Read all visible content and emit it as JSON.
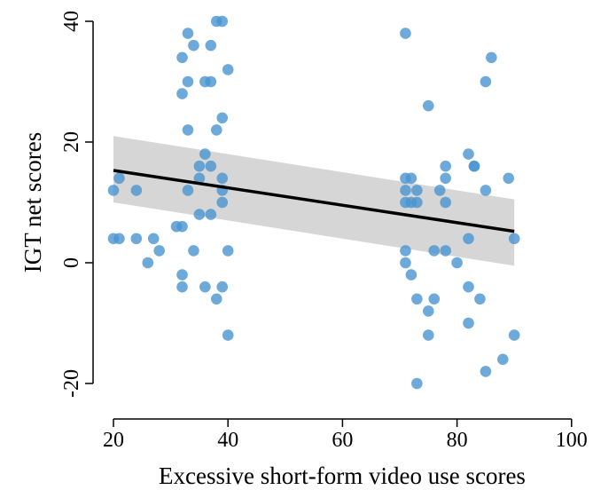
{
  "chart_data": {
    "type": "scatter",
    "title": "",
    "xlabel": "Excessive short-form video use scores",
    "ylabel": "IGT net scores",
    "xlim": [
      15,
      105
    ],
    "ylim": [
      -24,
      42
    ],
    "xticks": [
      20,
      40,
      60,
      80,
      100
    ],
    "yticks": [
      -20,
      0,
      20,
      40
    ],
    "grid": false,
    "point_color": "#4a95cf",
    "points": [
      [
        20,
        12
      ],
      [
        21,
        14
      ],
      [
        20,
        4
      ],
      [
        21,
        4
      ],
      [
        24,
        12
      ],
      [
        24,
        4
      ],
      [
        26,
        0
      ],
      [
        27,
        4
      ],
      [
        28,
        2
      ],
      [
        32,
        34
      ],
      [
        32,
        28
      ],
      [
        33,
        38
      ],
      [
        34,
        36
      ],
      [
        33,
        30
      ],
      [
        36,
        30
      ],
      [
        37,
        36
      ],
      [
        37,
        30
      ],
      [
        38,
        40
      ],
      [
        39,
        40
      ],
      [
        40,
        32
      ],
      [
        33,
        22
      ],
      [
        38,
        22
      ],
      [
        39,
        24
      ],
      [
        36,
        18
      ],
      [
        35,
        16
      ],
      [
        37,
        16
      ],
      [
        35,
        14
      ],
      [
        39,
        14
      ],
      [
        33,
        12
      ],
      [
        39,
        12
      ],
      [
        39,
        10
      ],
      [
        31,
        6
      ],
      [
        32,
        6
      ],
      [
        35,
        8
      ],
      [
        37,
        8
      ],
      [
        34,
        2
      ],
      [
        40,
        2
      ],
      [
        32,
        -2
      ],
      [
        32,
        -4
      ],
      [
        36,
        -4
      ],
      [
        39,
        -4
      ],
      [
        38,
        -6
      ],
      [
        40,
        -12
      ],
      [
        71,
        38
      ],
      [
        86,
        34
      ],
      [
        85,
        30
      ],
      [
        75,
        26
      ],
      [
        71,
        14
      ],
      [
        72,
        14
      ],
      [
        78,
        16
      ],
      [
        82,
        18
      ],
      [
        83,
        16
      ],
      [
        83,
        16
      ],
      [
        89,
        14
      ],
      [
        71,
        12
      ],
      [
        73,
        12
      ],
      [
        77,
        12
      ],
      [
        78,
        14
      ],
      [
        85,
        12
      ],
      [
        71,
        10
      ],
      [
        72,
        10
      ],
      [
        73,
        10
      ],
      [
        78,
        10
      ],
      [
        82,
        4
      ],
      [
        90,
        4
      ],
      [
        71,
        2
      ],
      [
        76,
        2
      ],
      [
        78,
        2
      ],
      [
        71,
        0
      ],
      [
        80,
        0
      ],
      [
        72,
        -2
      ],
      [
        73,
        -6
      ],
      [
        76,
        -6
      ],
      [
        84,
        -6
      ],
      [
        75,
        -8
      ],
      [
        82,
        -4
      ],
      [
        75,
        -12
      ],
      [
        82,
        -10
      ],
      [
        90,
        -12
      ],
      [
        88,
        -16
      ],
      [
        85,
        -18
      ],
      [
        73,
        -20
      ]
    ],
    "fit": {
      "x": [
        20,
        90
      ],
      "y": [
        15.3,
        5.2
      ],
      "ci_upper": [
        21,
        10.5
      ],
      "ci_lower": [
        10,
        -0.5
      ]
    }
  }
}
